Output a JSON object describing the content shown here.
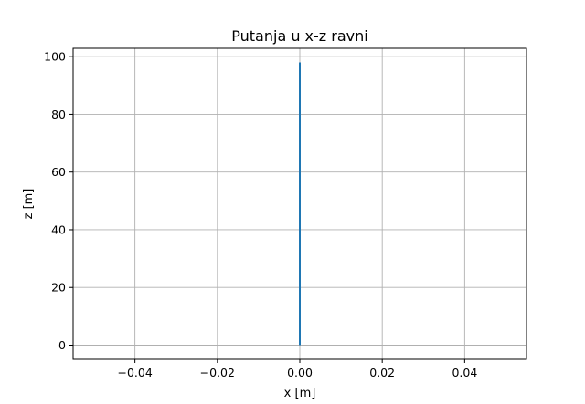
{
  "chart_data": {
    "type": "line",
    "title": "Putanja u x-z ravni",
    "xlabel": "x [m]",
    "ylabel": "z [m]",
    "xlim": [
      -0.055,
      0.055
    ],
    "ylim": [
      -4.9,
      102.9
    ],
    "xticks": [
      -0.04,
      -0.02,
      0.0,
      0.02,
      0.04
    ],
    "xtick_labels": [
      "−0.04",
      "−0.02",
      "0.00",
      "0.02",
      "0.04"
    ],
    "yticks": [
      0,
      20,
      40,
      60,
      80,
      100
    ],
    "ytick_labels": [
      "0",
      "20",
      "40",
      "60",
      "80",
      "100"
    ],
    "grid": true,
    "series": [
      {
        "x": [
          0.0,
          0.0
        ],
        "y": [
          0.0,
          98.0
        ]
      }
    ]
  },
  "colors": {
    "series": "#1f77b4",
    "grid": "#b0b0b0",
    "axes": "#000000"
  }
}
